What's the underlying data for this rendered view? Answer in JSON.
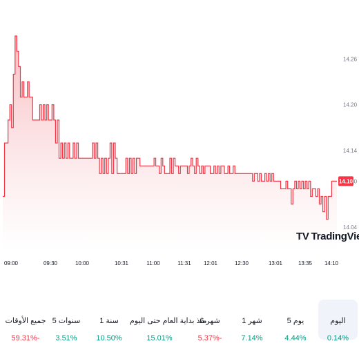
{
  "chart_data": {
    "type": "area",
    "ylim": [
      14.01,
      14.31
    ],
    "yticks": [
      14.04,
      14.1,
      14.14,
      14.2,
      14.26
    ],
    "ytick_labels": [
      "14.04",
      "14.10",
      "14.14",
      "14.20",
      "14.26"
    ],
    "xticks": [
      "09:00",
      "09:30",
      "10:00",
      "10:31",
      "11:00",
      "11:31",
      "12:01",
      "12:30",
      "13:01",
      "13:35",
      "14:10"
    ],
    "last_value": 14.1,
    "last_value_label": "14.10",
    "values": [
      14.08,
      14.15,
      14.15,
      14.18,
      14.2,
      14.17,
      14.24,
      14.29,
      14.27,
      14.25,
      14.21,
      14.23,
      14.21,
      14.21,
      14.23,
      14.21,
      14.21,
      14.18,
      14.18,
      14.18,
      14.18,
      14.2,
      14.18,
      14.2,
      14.18,
      14.2,
      14.18,
      14.18,
      14.2,
      14.18,
      14.15,
      14.18,
      14.13,
      14.15,
      14.13,
      14.15,
      14.13,
      14.15,
      14.13,
      14.13,
      14.15,
      14.13,
      14.15,
      14.13,
      14.13,
      14.13,
      14.13,
      14.13,
      14.13,
      14.13,
      14.13,
      14.15,
      14.13,
      14.15,
      14.13,
      14.11,
      14.13,
      14.11,
      14.13,
      14.11,
      14.13,
      14.15,
      14.11,
      14.15,
      14.13,
      14.11,
      14.11,
      14.11,
      14.11,
      14.11,
      14.13,
      14.11,
      14.13,
      14.11,
      14.13,
      14.11,
      14.13,
      14.13,
      14.12,
      14.12,
      14.12,
      14.12,
      14.12,
      14.12,
      14.12,
      14.12,
      14.13,
      14.12,
      14.12,
      14.11,
      14.13,
      14.12,
      14.11,
      14.11,
      14.11,
      14.13,
      14.11,
      14.13,
      14.12,
      14.12,
      14.11,
      14.12,
      14.12,
      14.12,
      14.12,
      14.11,
      14.12,
      14.13,
      14.12,
      14.11,
      14.13,
      14.12,
      14.11,
      14.12,
      14.11,
      14.12,
      14.12,
      14.12,
      14.11,
      14.11,
      14.12,
      14.11,
      14.12,
      14.11,
      14.12,
      14.12,
      14.11,
      14.11,
      14.12,
      14.11,
      14.11,
      14.12,
      14.11,
      14.11,
      14.11,
      14.11,
      14.11,
      14.11,
      14.11,
      14.11,
      14.11,
      14.11,
      14.1,
      14.11,
      14.11,
      14.1,
      14.11,
      14.1,
      14.1,
      14.11,
      14.1,
      14.11,
      14.1,
      14.11,
      14.1,
      14.1,
      14.1,
      14.1,
      14.09,
      14.09,
      14.09,
      14.1,
      14.09,
      14.09,
      14.07,
      14.09,
      14.1,
      14.09,
      14.1,
      14.09,
      14.1,
      14.09,
      14.1,
      14.09,
      14.1,
      14.08,
      14.09,
      14.09,
      14.08,
      14.09,
      14.07,
      14.08,
      14.06,
      14.08,
      14.05,
      14.08,
      14.08,
      14.1,
      14.1,
      14.1,
      14.1
    ]
  },
  "periods": [
    {
      "label": "اليوم",
      "value": "0.14%",
      "trend": "pos",
      "active": true
    },
    {
      "label": "5 يوم",
      "value": "4.44%",
      "trend": "pos",
      "active": false
    },
    {
      "label": "1 شهر",
      "value": "7.14%",
      "trend": "pos",
      "active": false
    },
    {
      "label": "6 شهر",
      "value": "5.37%-",
      "trend": "neg",
      "active": false
    },
    {
      "label": "منذ بداية العام حتى اليوم",
      "value": "15.01%",
      "trend": "pos",
      "active": false
    },
    {
      "label": "1 سنة",
      "value": "10.50%",
      "trend": "pos",
      "active": false
    },
    {
      "label": "5 سنوات",
      "value": "3.51%",
      "trend": "pos",
      "active": false
    },
    {
      "label": "جميع الأوقات",
      "value": "59.31%-",
      "trend": "neg",
      "active": false
    }
  ],
  "watermark": {
    "logo": "TV",
    "text": "TradingView"
  },
  "colors": {
    "line": "#f23645",
    "fill_top": "#f7b6bb",
    "fill_bottom": "#ffffff",
    "positive": "#089981",
    "negative": "#f23645"
  }
}
